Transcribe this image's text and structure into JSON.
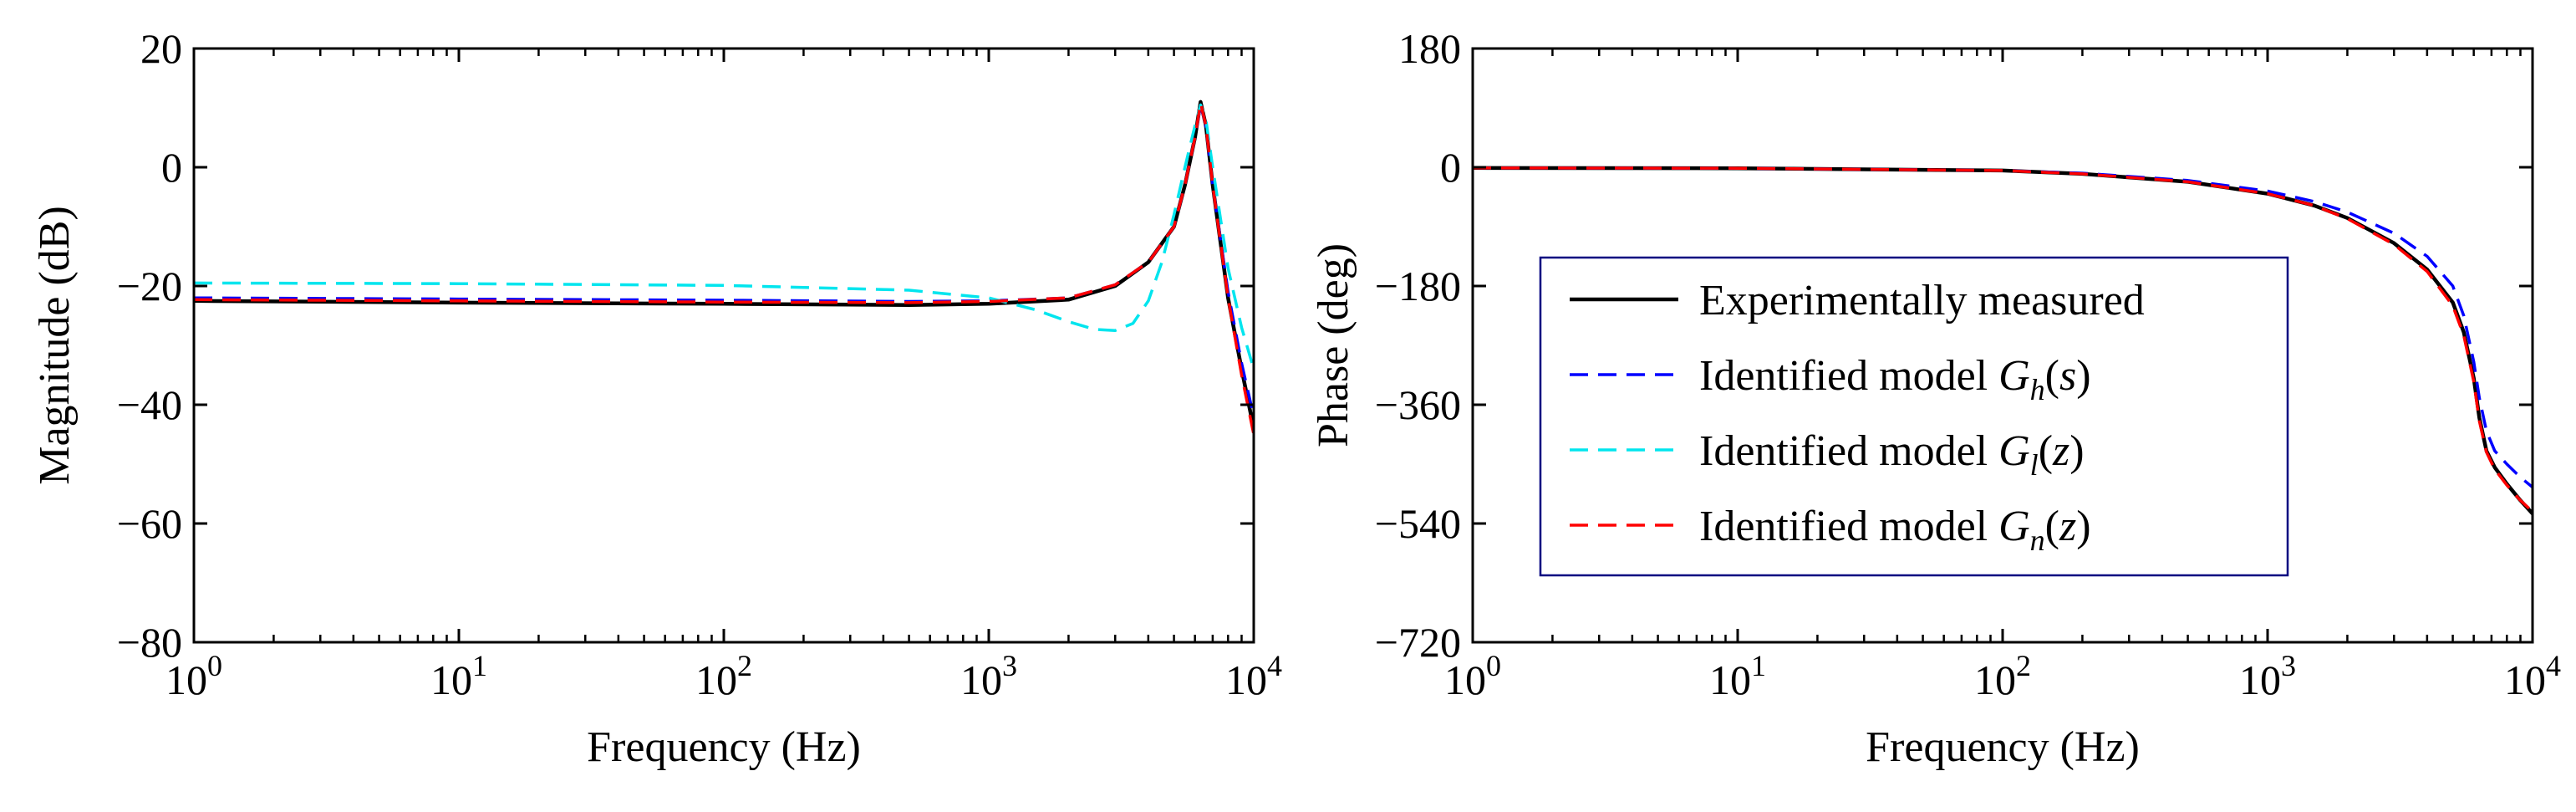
{
  "chart_data": [
    {
      "id": "magnitude",
      "type": "line",
      "xscale": "log",
      "xlabel": "Frequency (Hz)",
      "ylabel": "Magnitude (dB)",
      "xlim": [
        1,
        10000
      ],
      "ylim": [
        -80,
        20
      ],
      "xticks": [
        1,
        10,
        100,
        1000,
        10000
      ],
      "xtick_labels": [
        {
          "base": "10",
          "exp": "0"
        },
        {
          "base": "10",
          "exp": "1"
        },
        {
          "base": "10",
          "exp": "2"
        },
        {
          "base": "10",
          "exp": "3"
        },
        {
          "base": "10",
          "exp": "4"
        }
      ],
      "yticks": [
        20,
        0,
        -20,
        -40,
        -60,
        -80
      ],
      "ytick_labels": [
        "20",
        "0",
        "−20",
        "−40",
        "−60",
        "−80"
      ],
      "series": [
        {
          "key": "measured",
          "name": "Experimentally measured",
          "x": [
            1,
            10,
            100,
            500,
            1000,
            2000,
            3000,
            4000,
            5000,
            5500,
            6000,
            6300,
            6600,
            7000,
            8000,
            9000,
            10000
          ],
          "y": [
            -22.5,
            -22.8,
            -23,
            -23.2,
            -23,
            -22.3,
            -20,
            -16,
            -10,
            -3,
            5,
            11,
            7,
            -3,
            -22,
            -34,
            -44
          ]
        },
        {
          "key": "gh",
          "name": "Identified model G_h(s)",
          "x": [
            1,
            10,
            100,
            500,
            1000,
            2000,
            3000,
            4000,
            5000,
            5500,
            6000,
            6300,
            6600,
            7000,
            8000,
            9000,
            10000
          ],
          "y": [
            -22,
            -22.2,
            -22.4,
            -22.6,
            -22.5,
            -22,
            -19.8,
            -16,
            -10,
            -3,
            5,
            10.5,
            7,
            -3,
            -21,
            -33,
            -42
          ]
        },
        {
          "key": "gl",
          "name": "Identified model G_l(z)",
          "x": [
            1,
            10,
            100,
            500,
            1000,
            1500,
            2000,
            2500,
            3000,
            3500,
            4000,
            4500,
            5000,
            5500,
            6000,
            6300,
            6600,
            7000,
            8000,
            9000,
            10000
          ],
          "y": [
            -19.5,
            -19.6,
            -19.9,
            -20.7,
            -22,
            -24,
            -26,
            -27.3,
            -27.5,
            -26.3,
            -22.5,
            -16,
            -8,
            0,
            7,
            10.5,
            8,
            0,
            -17,
            -27,
            -34
          ]
        },
        {
          "key": "gn",
          "name": "Identified model G_n(z)",
          "x": [
            1,
            10,
            100,
            500,
            1000,
            2000,
            3000,
            4000,
            5000,
            5500,
            6000,
            6300,
            6600,
            7000,
            8000,
            9000,
            10000
          ],
          "y": [
            -22.3,
            -22.5,
            -22.7,
            -22.8,
            -22.6,
            -22,
            -19.8,
            -16,
            -10,
            -3,
            5,
            10.8,
            7,
            -3,
            -22,
            -35,
            -45
          ]
        }
      ]
    },
    {
      "id": "phase",
      "type": "line",
      "xscale": "log",
      "xlabel": "Frequency (Hz)",
      "ylabel": "Phase (deg)",
      "xlim": [
        1,
        10000
      ],
      "ylim": [
        -720,
        180
      ],
      "xticks": [
        1,
        10,
        100,
        1000,
        10000
      ],
      "xtick_labels": [
        {
          "base": "10",
          "exp": "0"
        },
        {
          "base": "10",
          "exp": "1"
        },
        {
          "base": "10",
          "exp": "2"
        },
        {
          "base": "10",
          "exp": "3"
        },
        {
          "base": "10",
          "exp": "4"
        }
      ],
      "yticks": [
        180,
        0,
        -180,
        -360,
        -540,
        -720
      ],
      "ytick_labels": [
        "180",
        "0",
        "−180",
        "−360",
        "−540",
        "−720"
      ],
      "series": [
        {
          "key": "measured",
          "name": "Experimentally measured",
          "x": [
            1,
            10,
            100,
            200,
            500,
            1000,
            1500,
            2000,
            3000,
            4000,
            5000,
            5500,
            6000,
            6300,
            6700,
            7200,
            8000,
            9000,
            10000
          ],
          "y": [
            -1,
            -1.5,
            -5,
            -10,
            -22,
            -40,
            -58,
            -77,
            -115,
            -155,
            -205,
            -250,
            -320,
            -380,
            -430,
            -455,
            -480,
            -505,
            -525
          ]
        },
        {
          "key": "gh",
          "name": "Identified model G_h(s)",
          "x": [
            1,
            10,
            100,
            200,
            500,
            1000,
            1500,
            2000,
            3000,
            4000,
            5000,
            5500,
            6000,
            6300,
            6700,
            7200,
            8000,
            9000,
            10000
          ],
          "y": [
            -1,
            -1.5,
            -5,
            -9,
            -20,
            -36,
            -52,
            -68,
            -100,
            -135,
            -180,
            -225,
            -295,
            -350,
            -400,
            -430,
            -450,
            -470,
            -485
          ]
        },
        {
          "key": "gn",
          "name": "Identified model G_n(z)",
          "x": [
            1,
            10,
            100,
            200,
            500,
            1000,
            1500,
            2000,
            3000,
            4000,
            5000,
            5500,
            6000,
            6300,
            6700,
            7200,
            8000,
            9000,
            10000
          ],
          "y": [
            -1,
            -1.5,
            -5,
            -10,
            -22,
            -40,
            -58,
            -78,
            -117,
            -158,
            -210,
            -255,
            -325,
            -385,
            -432,
            -458,
            -482,
            -505,
            -522
          ]
        }
      ]
    }
  ],
  "legend": {
    "placement": "phase-panel center",
    "entries": [
      {
        "key": "measured",
        "color": "#000000",
        "dash": "solid",
        "text": "Experimentally measured",
        "func": "",
        "sub": "",
        "arg": ""
      },
      {
        "key": "gh",
        "color": "#0000ff",
        "dash": "dashed",
        "text": "Identified model ",
        "func": "G",
        "sub": "h",
        "arg": "s"
      },
      {
        "key": "gl",
        "color": "#00e5ee",
        "dash": "dashed",
        "text": "Identified model ",
        "func": "G",
        "sub": "l",
        "arg": "z"
      },
      {
        "key": "gn",
        "color": "#ff0000",
        "dash": "dashed",
        "text": "Identified model ",
        "func": "G",
        "sub": "n",
        "arg": "z"
      }
    ]
  },
  "colors": {
    "measured": "#000000",
    "gh": "#0000ff",
    "gl": "#00e5ee",
    "gn": "#ff0000",
    "legend_border": "#000080"
  }
}
